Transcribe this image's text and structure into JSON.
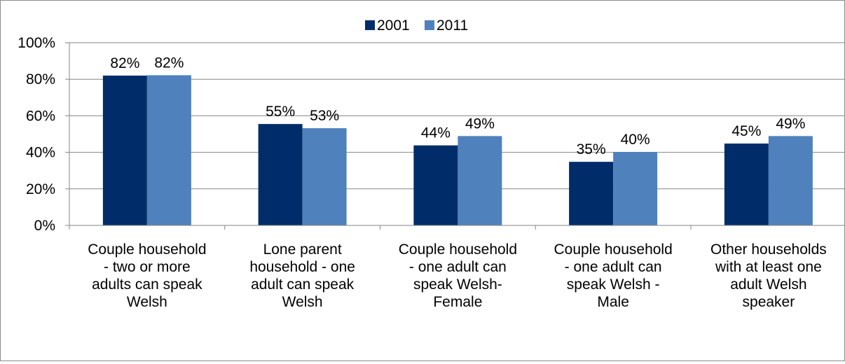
{
  "chart_data": {
    "type": "bar",
    "title": "",
    "xlabel": "",
    "ylabel": "",
    "ylim": [
      0,
      100
    ],
    "yticks": [
      0,
      20,
      40,
      60,
      80,
      100
    ],
    "ytick_labels": [
      "0%",
      "20%",
      "40%",
      "60%",
      "80%",
      "100%"
    ],
    "grid": true,
    "legend_position": "top-center",
    "categories": [
      [
        "Couple household",
        "- two or more",
        "adults can speak",
        "Welsh"
      ],
      [
        "Lone parent",
        "household - one",
        "adult can speak",
        "Welsh"
      ],
      [
        "Couple household",
        "- one adult can",
        "speak Welsh-",
        "Female"
      ],
      [
        "Couple household",
        "- one adult can",
        "speak Welsh -",
        "Male"
      ],
      [
        "Other households",
        "with at least one",
        "adult Welsh",
        "speaker"
      ]
    ],
    "series": [
      {
        "name": "2001",
        "color": "#002D6A",
        "values": [
          82,
          55.5,
          43.8,
          34.8,
          44.8
        ],
        "labels": [
          "82%",
          "55%",
          "44%",
          "35%",
          "45%"
        ]
      },
      {
        "name": "2011",
        "color": "#4F81BD",
        "values": [
          82.2,
          53.2,
          48.9,
          40.2,
          48.9
        ],
        "labels": [
          "82%",
          "53%",
          "49%",
          "40%",
          "49%"
        ]
      }
    ]
  }
}
